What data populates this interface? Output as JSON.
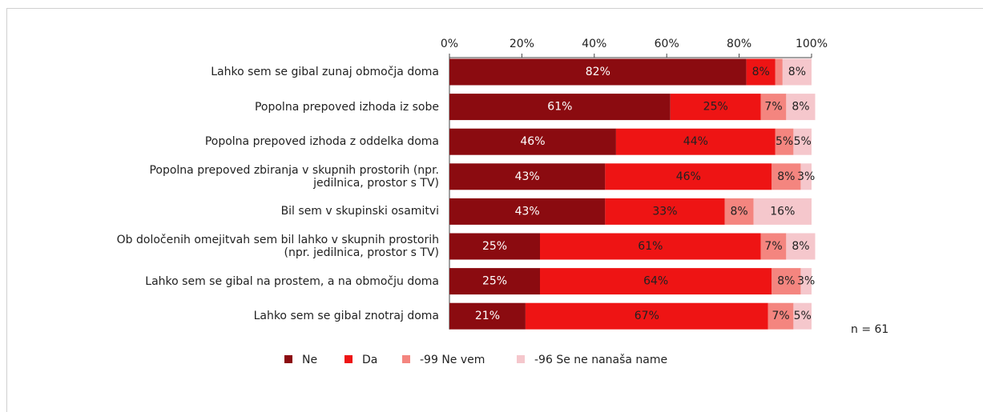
{
  "chart_data": {
    "type": "stacked-bar-horizontal",
    "categories": [
      "Lahko sem se gibal zunaj območja doma",
      "Popolna prepoved izhoda iz sobe",
      "Popolna prepoved izhoda z oddelka doma",
      "Popolna prepoved zbiranja v skupnih prostorih (npr.\njedilnica, prostor s TV)",
      "Bil sem v skupinski osamitvi",
      "Ob določenih omejitvah sem bil lahko v skupnih prostorih\n(npr. jedilnica, prostor s TV)",
      "Lahko sem se gibal na prostem, a na območju doma",
      "Lahko sem se gibal znotraj doma"
    ],
    "series": [
      {
        "name": "Ne",
        "color": "#8b0b10",
        "values": [
          82,
          61,
          46,
          43,
          43,
          25,
          25,
          21
        ],
        "value_labels": [
          "82%",
          "61%",
          "46%",
          "43%",
          "43%",
          "25%",
          "25%",
          "21%"
        ]
      },
      {
        "name": "Da",
        "color": "#ee1414",
        "values": [
          8,
          25,
          44,
          46,
          33,
          61,
          64,
          67
        ],
        "value_labels": [
          "8%",
          "25%",
          "44%",
          "46%",
          "33%",
          "61%",
          "64%",
          "67%"
        ]
      },
      {
        "name": "-99 Ne vem",
        "color": "#f4857f",
        "values": [
          2,
          7,
          5,
          8,
          8,
          7,
          8,
          7
        ],
        "value_labels": [
          null,
          "7%",
          "5%",
          "8%",
          "8%",
          "7%",
          "8%",
          "7%"
        ]
      },
      {
        "name": "-96 Se ne nanaša name",
        "color": "#f5c7cc",
        "values": [
          8,
          8,
          5,
          3,
          16,
          8,
          3,
          5
        ],
        "value_labels": [
          "8%",
          "8%",
          "5%",
          "3%",
          "16%",
          "8%",
          "3%",
          "5%"
        ]
      }
    ],
    "xlim": [
      0,
      100
    ],
    "xticks": [
      {
        "value": 0,
        "label": "0%"
      },
      {
        "value": 20,
        "label": "20%"
      },
      {
        "value": 40,
        "label": "40%"
      },
      {
        "value": 60,
        "label": "60%"
      },
      {
        "value": 80,
        "label": "80%"
      },
      {
        "value": 100,
        "label": "100%"
      }
    ],
    "annotation": "n = 61",
    "legend": "bottom"
  }
}
